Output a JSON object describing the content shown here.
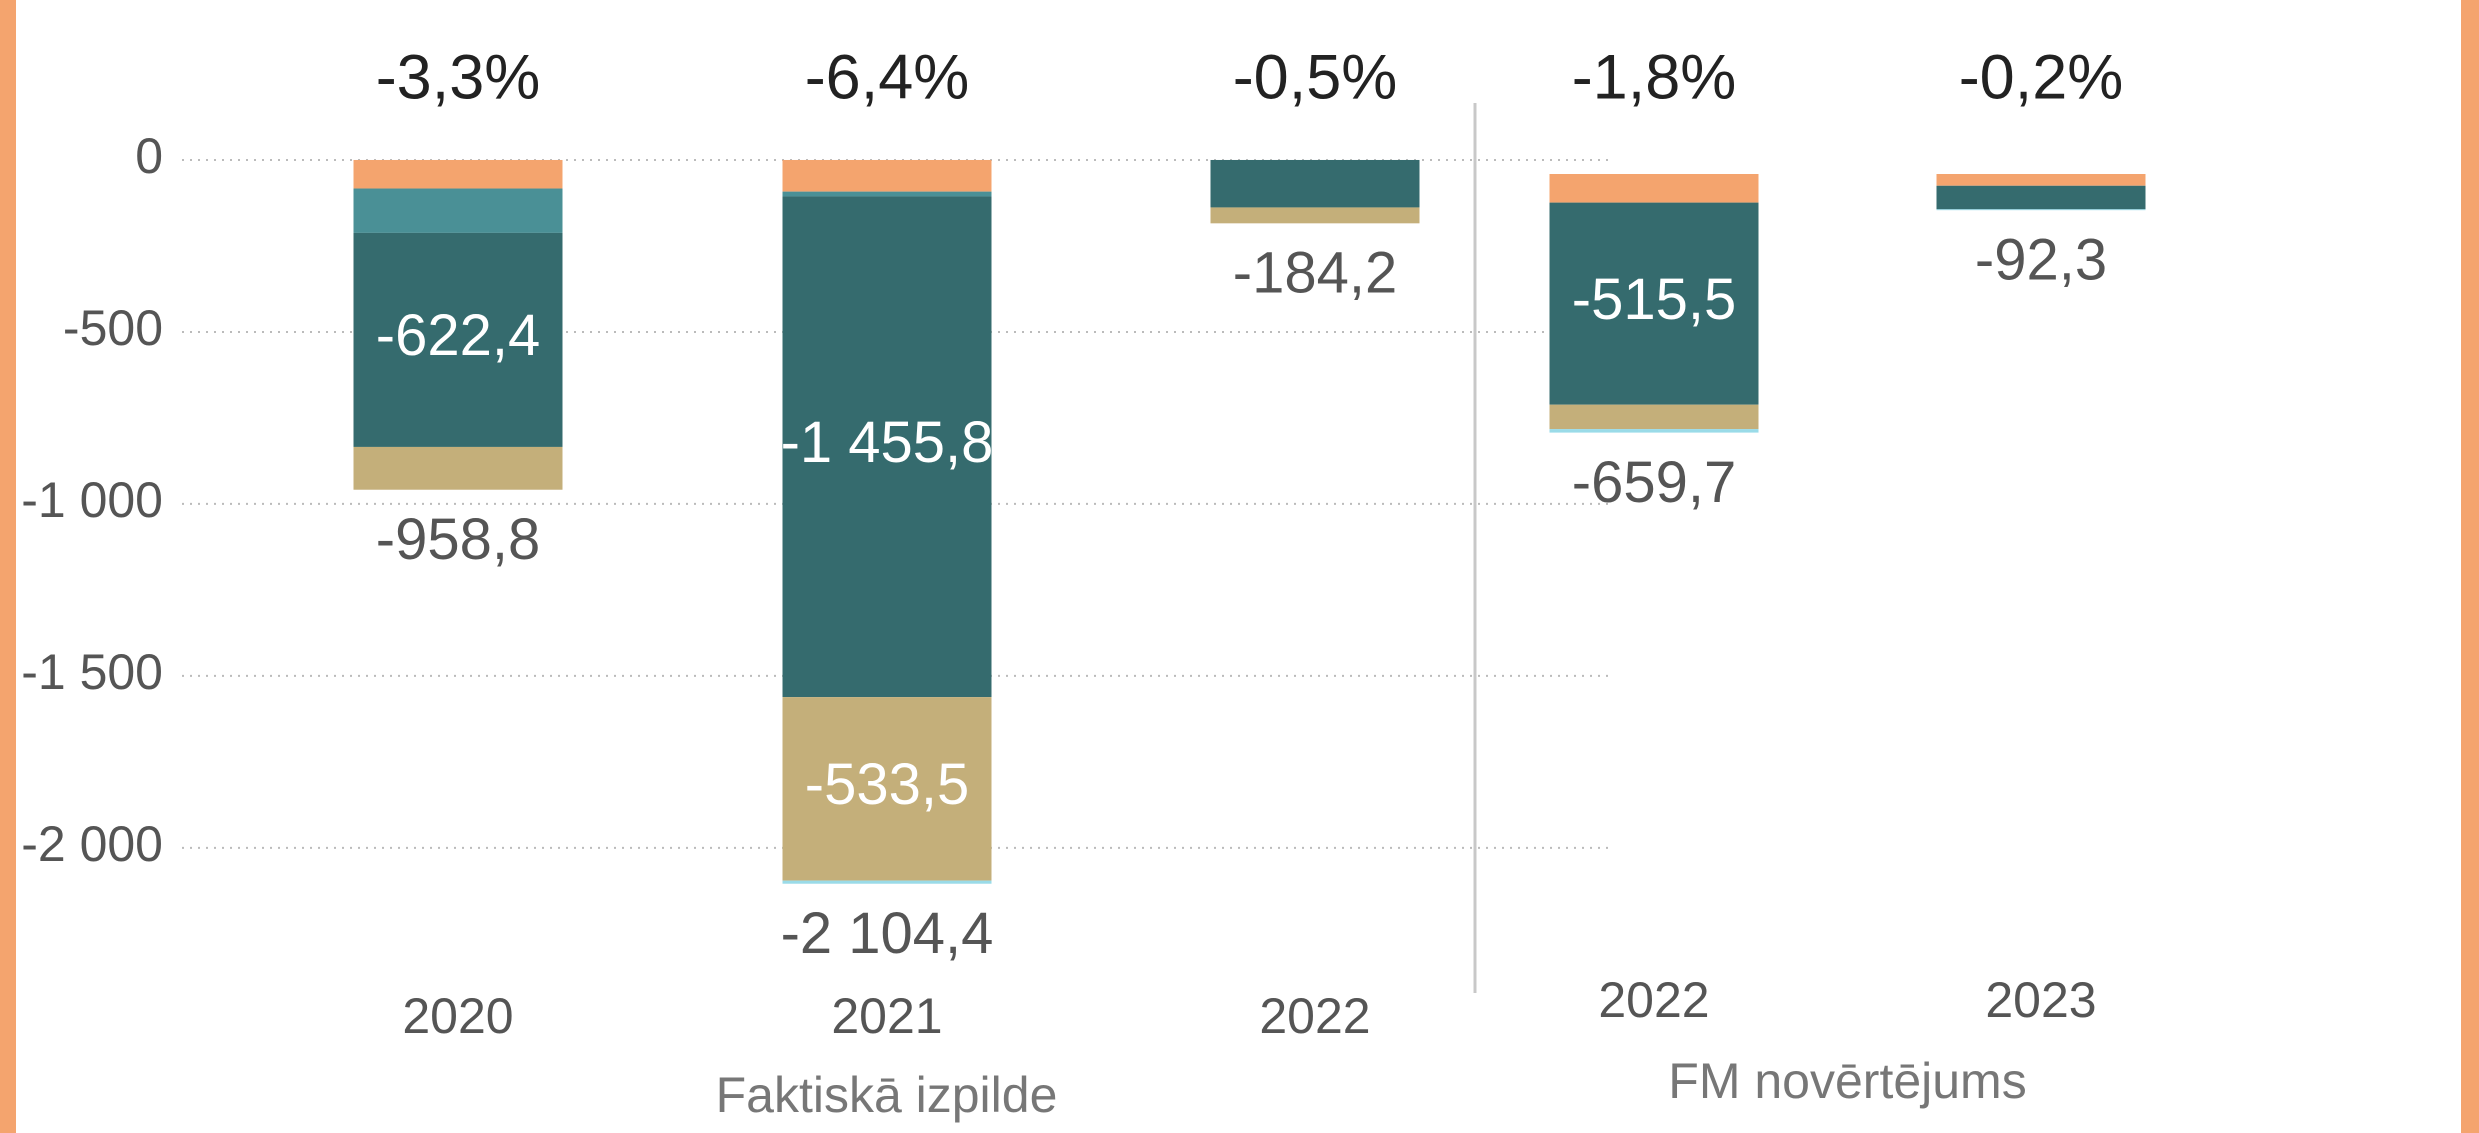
{
  "chart_data": [
    {
      "type": "bar",
      "stacked": true,
      "xlabel": "Faktiskā izpilde",
      "categories": [
        "2020",
        "2021",
        "2022"
      ],
      "series": [
        {
          "color": "#F4A46E",
          "values": [
            -83,
            -92,
            0
          ]
        },
        {
          "color": "#4A9096",
          "values": [
            -129,
            -14,
            0
          ]
        },
        {
          "color": "#356B6E",
          "values": [
            -622.4,
            -1455.8,
            -138
          ],
          "value_labels": [
            "-622,4",
            "-1 455,8",
            null
          ]
        },
        {
          "color": "#C4AF7A",
          "values": [
            -124.4,
            -533.5,
            -46.2
          ],
          "value_labels": [
            null,
            "-533,5",
            null
          ]
        },
        {
          "color": "#9ADBE8",
          "values": [
            0,
            -9.1,
            0
          ]
        }
      ],
      "totals": [
        -958.8,
        -2104.4,
        -184.2
      ],
      "total_labels": [
        "-958,8",
        "-2 104,4",
        "-184,2"
      ],
      "percents": [
        -3.3,
        -6.4,
        -0.5
      ],
      "percent_labels": [
        "-3,3%",
        "-6,4%",
        "-0,5%"
      ],
      "ylim": [
        -2300,
        300
      ],
      "yticks": [
        0,
        -500,
        {
          "value": -1000,
          "label": "-1 000"
        },
        {
          "value": -1500,
          "label": "-1 500"
        },
        {
          "value": -2000,
          "label": "-2 000"
        }
      ],
      "grid": true
    },
    {
      "type": "bar",
      "stacked": true,
      "xlabel": "FM novērtējums",
      "categories": [
        "2022",
        "2023"
      ],
      "series": [
        {
          "color": "#F4A46E",
          "values": [
            -73,
            -30
          ]
        },
        {
          "color": "#4A9096",
          "values": [
            0,
            0
          ]
        },
        {
          "color": "#356B6E",
          "values": [
            -515.5,
            -60
          ],
          "value_labels": [
            "-515,5",
            null
          ]
        },
        {
          "color": "#C4AF7A",
          "values": [
            -62.2,
            0
          ]
        },
        {
          "color": "#9ADBE8",
          "values": [
            -9,
            -2.3
          ]
        }
      ],
      "totals": [
        -659.7,
        -92.3
      ],
      "total_labels": [
        "-659,7",
        "-92,3"
      ],
      "percents": [
        -1.8,
        -0.2
      ],
      "percent_labels": [
        "-1,8%",
        "-0,2%"
      ],
      "ylim": [
        -2000,
        300
      ],
      "grid": false
    }
  ]
}
